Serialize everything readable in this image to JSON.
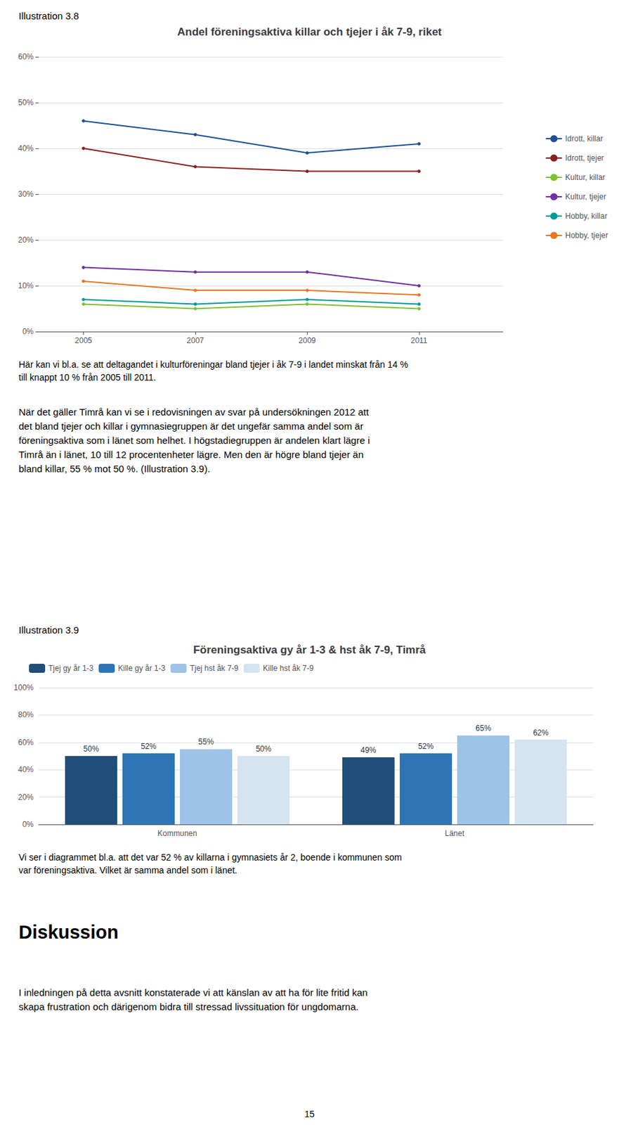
{
  "chart_data": [
    {
      "type": "line",
      "title": "Andel föreningsaktiva killar och tjejer i åk 7-9, riket",
      "x": [
        2005,
        2007,
        2009,
        2011
      ],
      "xlim": [
        2004.2,
        2012.5
      ],
      "xticks": [
        2005,
        2007,
        2009,
        2011
      ],
      "series": [
        {
          "name": "Idrott, killar",
          "color": "#1F5091",
          "values": [
            46,
            43,
            39,
            41
          ]
        },
        {
          "name": "Idrott, tjejer",
          "color": "#8B2020",
          "values": [
            40,
            36,
            35,
            35
          ]
        },
        {
          "name": "Kultur, killar",
          "color": "#7DC230",
          "values": [
            6,
            5,
            6,
            5
          ]
        },
        {
          "name": "Kultur, tjejer",
          "color": "#7030A0",
          "values": [
            14,
            13,
            13,
            10
          ]
        },
        {
          "name": "Hobby, killar",
          "color": "#009999",
          "values": [
            7,
            6,
            7,
            6
          ]
        },
        {
          "name": "Hobby, tjejer",
          "color": "#E87722",
          "values": [
            11,
            9,
            9,
            8
          ]
        }
      ],
      "ylim": [
        0,
        60
      ],
      "yticks": [
        {
          "value": 0,
          "label": "0%"
        },
        {
          "value": 10,
          "label": "10%"
        },
        {
          "value": 20,
          "label": "20%"
        },
        {
          "value": 30,
          "label": "30%"
        },
        {
          "value": 40,
          "label": "40%"
        },
        {
          "value": 50,
          "label": "50%"
        },
        {
          "value": 60,
          "label": "60%"
        }
      ],
      "grid": true,
      "legend": "right",
      "annotations": [
        "Illustration 3.8",
        "Här kan vi bl.a. se att deltagandet i kulturföreningar bland tjejer i åk 7-9 i landet minskat från 14 %",
        "till knappt 10 % från 2005 till 2011.",
        "När det gäller Timrå kan vi se i redovisningen av svar på undersökningen 2012 att",
        "det bland tjejer och killar i gymnasiegruppen är det ungefär samma andel som är",
        "föreningsaktiva som i länet som helhet. I högstadiegruppen är andelen klart lägre i",
        "Timrå än i länet, 10 till 12 procentenheter lägre. Men den är högre bland tjejer än",
        "bland killar, 55 % mot 50 %. (Illustration 3.9)."
      ]
    },
    {
      "type": "bar",
      "title": "Föreningsaktiva gy år 1-3 & hst åk 7-9, Timrå",
      "categories": [
        "Kommunen",
        "Länet"
      ],
      "series": [
        {
          "name": "Tjej gy år 1-3",
          "color": "#1F4E79",
          "values": [
            50,
            49
          ],
          "value_labels": [
            "50%",
            "49%"
          ]
        },
        {
          "name": "Kille gy år 1-3",
          "color": "#2E75B6",
          "values": [
            52,
            52
          ],
          "value_labels": [
            "52%",
            "52%"
          ]
        },
        {
          "name": "Tjej hst åk 7-9",
          "color": "#9DC3E6",
          "values": [
            55,
            65
          ],
          "value_labels": [
            "55%",
            "65%"
          ]
        },
        {
          "name": "Kille hst åk 7-9",
          "color": "#D6E4F0",
          "values": [
            50,
            62
          ],
          "value_labels": [
            "50%",
            "62%"
          ]
        }
      ],
      "ylim": [
        0,
        100
      ],
      "yticks": [
        {
          "value": 0,
          "label": "0%"
        },
        {
          "value": 20,
          "label": "20%"
        },
        {
          "value": 40,
          "label": "40%"
        },
        {
          "value": 60,
          "label": "60%"
        },
        {
          "value": 80,
          "label": "80%"
        },
        {
          "value": 100,
          "label": "100%"
        }
      ],
      "grid": true,
      "legend": "top",
      "data_labels": true,
      "annotations": [
        "Illustration 3.9",
        "Vi ser i diagrammet bl.a. att det var 52 % av killarna i gymnasiets år 2, boende  i kommunen som",
        "var föreningsaktiva. Vilket är samma andel som i länet.",
        "Diskussion",
        "I inledningen på detta avsnitt konstaterade vi att känslan av att ha för lite fritid kan",
        "skapa frustration och därigenom bidra till stressad livssituation för ungdomarna.",
        "15"
      ]
    }
  ]
}
